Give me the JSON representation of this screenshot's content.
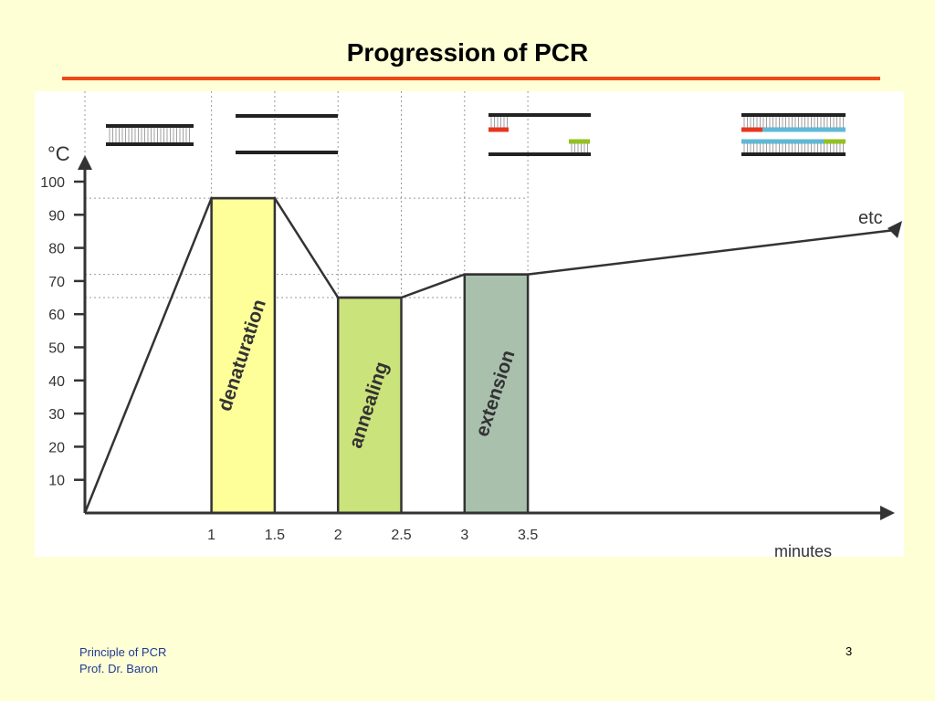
{
  "slide": {
    "title": "Progression of PCR",
    "footer_line1": "Principle of PCR",
    "footer_line2": "Prof. Dr. Baron",
    "page_number": "3",
    "accent_color": "#ef4a16",
    "background_color": "#ffffd6"
  },
  "chart_data": {
    "type": "line",
    "ylabel": "°C",
    "xlabel": "minutes",
    "xlim": [
      0,
      3.5
    ],
    "ylim": [
      0,
      100
    ],
    "x_ticks": [
      "1",
      "1.5",
      "2",
      "2.5",
      "3",
      "3.5"
    ],
    "y_ticks": [
      "10",
      "20",
      "30",
      "40",
      "50",
      "60",
      "70",
      "80",
      "90",
      "100"
    ],
    "temperature_profile": {
      "x": [
        0,
        1,
        1.5,
        2,
        2.5,
        3,
        3.5
      ],
      "y": [
        0,
        95,
        95,
        65,
        65,
        72,
        72
      ]
    },
    "continuation_label": "etc",
    "reference_lines_y": [
      95,
      72,
      65
    ],
    "phases": [
      {
        "label": "denaturation",
        "x_start": 1,
        "x_end": 1.5,
        "temperature": 95,
        "color": "#ffff99"
      },
      {
        "label": "annealing",
        "x_start": 2,
        "x_end": 2.5,
        "temperature": 65,
        "color": "#cbe37b"
      },
      {
        "label": "extension",
        "x_start": 3,
        "x_end": 3.5,
        "temperature": 72,
        "color": "#a9c0ad"
      }
    ],
    "strand_colors": {
      "template": "#222222",
      "primer_forward": "#e8351e",
      "primer_reverse": "#93c21e",
      "new_strand": "#5fb9d6"
    }
  }
}
